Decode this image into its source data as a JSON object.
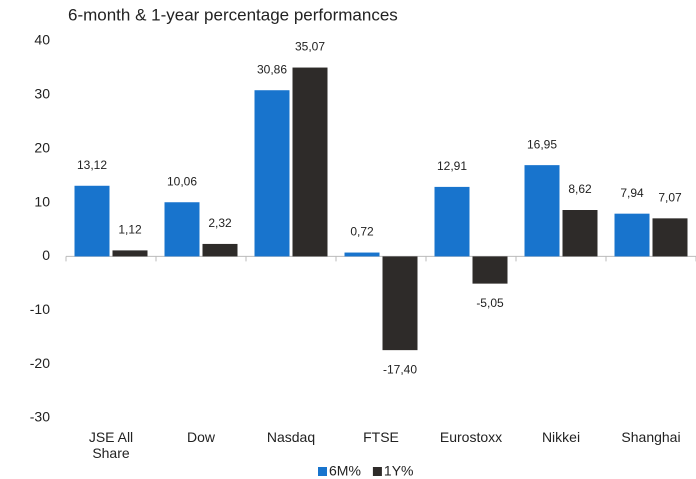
{
  "chart_data": {
    "type": "bar",
    "title": "6-month & 1-year percentage performances",
    "categories": [
      "JSE All Share",
      "Dow",
      "Nasdaq",
      "FTSE",
      "Eurostoxx",
      "Nikkei",
      "Shanghai"
    ],
    "series": [
      {
        "name": "6M%",
        "color": "#1874cd",
        "values": [
          13.12,
          10.06,
          30.86,
          0.72,
          12.91,
          16.95,
          7.94
        ],
        "value_labels": [
          "13,12",
          "10,06",
          "30,86",
          "0,72",
          "12,91",
          "16,95",
          "7,94"
        ]
      },
      {
        "name": "1Y%",
        "color": "#2e2b29",
        "values": [
          1.12,
          2.32,
          35.07,
          -17.4,
          -5.05,
          8.62,
          7.07
        ],
        "value_labels": [
          "1,12",
          "2,32",
          "35,07",
          "-17,40",
          "-5,05",
          "8,62",
          "7,07"
        ]
      }
    ],
    "ylim": [
      -30,
      40
    ],
    "yticks": [
      -30,
      -20,
      -10,
      0,
      10,
      20,
      30,
      40
    ],
    "grid": false,
    "legend": "bottom"
  }
}
